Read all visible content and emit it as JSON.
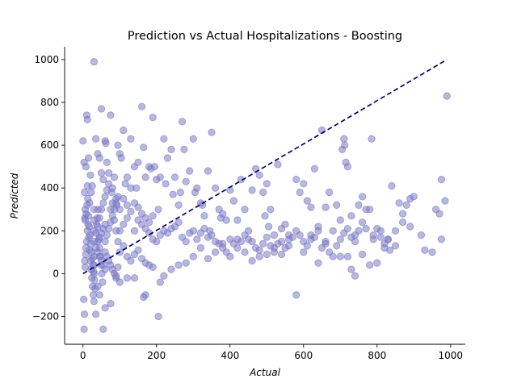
{
  "chart_data": {
    "type": "scatter",
    "title": "Prediction vs Actual Hospitalizations - Boosting",
    "xlabel": "Actual",
    "ylabel": "Predicted",
    "xlim": [
      -50,
      1040
    ],
    "ylim": [
      -330,
      1060
    ],
    "xticks": [
      0,
      200,
      400,
      600,
      800,
      1000
    ],
    "yticks": [
      -200,
      0,
      200,
      400,
      600,
      800,
      1000
    ],
    "grid": false,
    "point_color": "#7b7bc9",
    "reference_line": {
      "style": "dashed",
      "color": "#00007a",
      "from": [
        0,
        0
      ],
      "to": [
        990,
        1000
      ]
    },
    "points": [
      [
        0,
        620
      ],
      [
        3,
        520
      ],
      [
        4,
        380
      ],
      [
        5,
        260
      ],
      [
        6,
        300
      ],
      [
        8,
        120
      ],
      [
        2,
        -120
      ],
      [
        4,
        -190
      ],
      [
        3,
        -260
      ],
      [
        10,
        740
      ],
      [
        12,
        720
      ],
      [
        15,
        540
      ],
      [
        8,
        500
      ],
      [
        12,
        410
      ],
      [
        20,
        460
      ],
      [
        22,
        380
      ],
      [
        18,
        330
      ],
      [
        25,
        410
      ],
      [
        5,
        60
      ],
      [
        6,
        30
      ],
      [
        8,
        90
      ],
      [
        10,
        150
      ],
      [
        12,
        200
      ],
      [
        14,
        230
      ],
      [
        16,
        170
      ],
      [
        18,
        110
      ],
      [
        20,
        60
      ],
      [
        22,
        20
      ],
      [
        24,
        -20
      ],
      [
        26,
        -60
      ],
      [
        28,
        -100
      ],
      [
        30,
        -130
      ],
      [
        6,
        250
      ],
      [
        9,
        280
      ],
      [
        11,
        320
      ],
      [
        13,
        350
      ],
      [
        15,
        270
      ],
      [
        17,
        220
      ],
      [
        19,
        180
      ],
      [
        21,
        140
      ],
      [
        23,
        100
      ],
      [
        25,
        70
      ],
      [
        27,
        40
      ],
      [
        29,
        10
      ],
      [
        31,
        -30
      ],
      [
        33,
        -70
      ],
      [
        35,
        190
      ],
      [
        37,
        230
      ],
      [
        39,
        260
      ],
      [
        41,
        300
      ],
      [
        43,
        160
      ],
      [
        45,
        120
      ],
      [
        47,
        80
      ],
      [
        49,
        40
      ],
      [
        51,
        0
      ],
      [
        53,
        -40
      ],
      [
        30,
        990
      ],
      [
        35,
        630
      ],
      [
        40,
        560
      ],
      [
        45,
        540
      ],
      [
        50,
        470
      ],
      [
        55,
        440
      ],
      [
        60,
        620
      ],
      [
        62,
        610
      ],
      [
        50,
        770
      ],
      [
        65,
        520
      ],
      [
        70,
        470
      ],
      [
        75,
        740
      ],
      [
        78,
        380
      ],
      [
        80,
        400
      ],
      [
        85,
        450
      ],
      [
        90,
        350
      ],
      [
        92,
        320
      ],
      [
        95,
        600
      ],
      [
        100,
        560
      ],
      [
        104,
        540
      ],
      [
        110,
        670
      ],
      [
        115,
        420
      ],
      [
        120,
        450
      ],
      [
        130,
        630
      ],
      [
        140,
        500
      ],
      [
        145,
        400
      ],
      [
        150,
        520
      ],
      [
        160,
        780
      ],
      [
        165,
        590
      ],
      [
        170,
        450
      ],
      [
        180,
        500
      ],
      [
        185,
        490
      ],
      [
        190,
        730
      ],
      [
        195,
        500
      ],
      [
        200,
        440
      ],
      [
        205,
        300
      ],
      [
        210,
        450
      ],
      [
        220,
        630
      ],
      [
        225,
        420
      ],
      [
        230,
        540
      ],
      [
        240,
        580
      ],
      [
        245,
        370
      ],
      [
        250,
        450
      ],
      [
        260,
        320
      ],
      [
        265,
        380
      ],
      [
        270,
        710
      ],
      [
        275,
        580
      ],
      [
        280,
        430
      ],
      [
        290,
        480
      ],
      [
        300,
        630
      ],
      [
        305,
        380
      ],
      [
        310,
        400
      ],
      [
        320,
        330
      ],
      [
        325,
        320
      ],
      [
        330,
        270
      ],
      [
        340,
        480
      ],
      [
        345,
        200
      ],
      [
        350,
        660
      ],
      [
        360,
        400
      ],
      [
        370,
        300
      ],
      [
        375,
        260
      ],
      [
        380,
        280
      ],
      [
        390,
        250
      ],
      [
        400,
        390
      ],
      [
        410,
        340
      ],
      [
        420,
        250
      ],
      [
        430,
        440
      ],
      [
        440,
        300
      ],
      [
        450,
        200
      ],
      [
        460,
        390
      ],
      [
        470,
        490
      ],
      [
        480,
        460
      ],
      [
        490,
        380
      ],
      [
        495,
        270
      ],
      [
        500,
        420
      ],
      [
        505,
        220
      ],
      [
        510,
        300
      ],
      [
        520,
        180
      ],
      [
        530,
        510
      ],
      [
        540,
        210
      ],
      [
        550,
        230
      ],
      [
        560,
        160
      ],
      [
        580,
        440
      ],
      [
        590,
        380
      ],
      [
        600,
        420
      ],
      [
        610,
        340
      ],
      [
        620,
        310
      ],
      [
        630,
        490
      ],
      [
        640,
        220
      ],
      [
        650,
        670
      ],
      [
        660,
        310
      ],
      [
        670,
        380
      ],
      [
        690,
        320
      ],
      [
        700,
        250
      ],
      [
        705,
        580
      ],
      [
        710,
        630
      ],
      [
        712,
        600
      ],
      [
        715,
        520
      ],
      [
        720,
        500
      ],
      [
        730,
        270
      ],
      [
        740,
        180
      ],
      [
        750,
        320
      ],
      [
        760,
        360
      ],
      [
        770,
        300
      ],
      [
        780,
        300
      ],
      [
        785,
        630
      ],
      [
        790,
        160
      ],
      [
        800,
        210
      ],
      [
        810,
        170
      ],
      [
        820,
        140
      ],
      [
        830,
        160
      ],
      [
        840,
        410
      ],
      [
        850,
        200
      ],
      [
        860,
        330
      ],
      [
        870,
        280
      ],
      [
        880,
        320
      ],
      [
        890,
        350
      ],
      [
        900,
        360
      ],
      [
        930,
        110
      ],
      [
        950,
        100
      ],
      [
        960,
        300
      ],
      [
        970,
        280
      ],
      [
        975,
        160
      ],
      [
        985,
        340
      ],
      [
        990,
        830
      ],
      [
        975,
        440
      ],
      [
        580,
        -100
      ],
      [
        740,
        -10
      ],
      [
        730,
        20
      ],
      [
        760,
        90
      ],
      [
        780,
        40
      ],
      [
        800,
        50
      ],
      [
        835,
        110
      ],
      [
        820,
        120
      ],
      [
        700,
        80
      ],
      [
        720,
        80
      ],
      [
        640,
        50
      ],
      [
        660,
        150
      ],
      [
        680,
        200
      ],
      [
        600,
        100
      ],
      [
        620,
        160
      ],
      [
        560,
        180
      ],
      [
        540,
        150
      ],
      [
        520,
        120
      ],
      [
        500,
        90
      ],
      [
        480,
        80
      ],
      [
        460,
        60
      ],
      [
        440,
        100
      ],
      [
        420,
        120
      ],
      [
        400,
        160
      ],
      [
        380,
        140
      ],
      [
        360,
        100
      ],
      [
        340,
        70
      ],
      [
        320,
        120
      ],
      [
        300,
        80
      ],
      [
        280,
        50
      ],
      [
        260,
        40
      ],
      [
        240,
        20
      ],
      [
        220,
        -10
      ],
      [
        210,
        -40
      ],
      [
        205,
        -200
      ],
      [
        170,
        -100
      ],
      [
        165,
        -110
      ],
      [
        140,
        -20
      ],
      [
        120,
        -20
      ],
      [
        100,
        -40
      ],
      [
        90,
        -20
      ],
      [
        75,
        -140
      ],
      [
        60,
        -160
      ],
      [
        55,
        -260
      ],
      [
        35,
        -190
      ],
      [
        40,
        -60
      ],
      [
        45,
        -100
      ],
      [
        200,
        150
      ],
      [
        210,
        180
      ],
      [
        220,
        200
      ],
      [
        230,
        190
      ],
      [
        240,
        210
      ],
      [
        250,
        220
      ],
      [
        260,
        240
      ],
      [
        270,
        170
      ],
      [
        280,
        150
      ],
      [
        290,
        190
      ],
      [
        300,
        200
      ],
      [
        310,
        160
      ],
      [
        320,
        190
      ],
      [
        330,
        210
      ],
      [
        340,
        170
      ],
      [
        350,
        180
      ],
      [
        360,
        150
      ],
      [
        370,
        140
      ],
      [
        380,
        120
      ],
      [
        390,
        100
      ],
      [
        400,
        80
      ],
      [
        410,
        140
      ],
      [
        420,
        160
      ],
      [
        430,
        150
      ],
      [
        440,
        180
      ],
      [
        450,
        160
      ],
      [
        460,
        150
      ],
      [
        470,
        120
      ],
      [
        480,
        110
      ],
      [
        490,
        140
      ],
      [
        500,
        170
      ],
      [
        510,
        130
      ],
      [
        520,
        100
      ],
      [
        530,
        140
      ],
      [
        540,
        90
      ],
      [
        550,
        120
      ],
      [
        560,
        130
      ],
      [
        570,
        170
      ],
      [
        580,
        200
      ],
      [
        590,
        180
      ],
      [
        600,
        150
      ],
      [
        610,
        130
      ],
      [
        620,
        180
      ],
      [
        630,
        170
      ],
      [
        640,
        200
      ],
      [
        650,
        120
      ],
      [
        660,
        140
      ],
      [
        670,
        100
      ],
      [
        680,
        80
      ],
      [
        690,
        130
      ],
      [
        700,
        160
      ],
      [
        710,
        190
      ],
      [
        720,
        210
      ],
      [
        730,
        170
      ],
      [
        740,
        150
      ],
      [
        750,
        200
      ],
      [
        760,
        240
      ],
      [
        770,
        210
      ],
      [
        790,
        180
      ],
      [
        810,
        200
      ],
      [
        830,
        160
      ],
      [
        850,
        130
      ],
      [
        870,
        240
      ],
      [
        890,
        220
      ],
      [
        920,
        180
      ],
      [
        100,
        100
      ],
      [
        110,
        130
      ],
      [
        120,
        80
      ],
      [
        130,
        60
      ],
      [
        140,
        90
      ],
      [
        150,
        110
      ],
      [
        160,
        70
      ],
      [
        170,
        50
      ],
      [
        180,
        40
      ],
      [
        190,
        30
      ],
      [
        100,
        200
      ],
      [
        110,
        230
      ],
      [
        120,
        260
      ],
      [
        130,
        290
      ],
      [
        140,
        200
      ],
      [
        150,
        250
      ],
      [
        160,
        230
      ],
      [
        170,
        210
      ],
      [
        180,
        190
      ],
      [
        190,
        160
      ],
      [
        100,
        300
      ],
      [
        110,
        350
      ],
      [
        120,
        320
      ],
      [
        130,
        400
      ],
      [
        140,
        330
      ],
      [
        150,
        310
      ],
      [
        160,
        280
      ],
      [
        170,
        260
      ],
      [
        180,
        240
      ],
      [
        190,
        270
      ],
      [
        60,
        150
      ],
      [
        65,
        180
      ],
      [
        70,
        210
      ],
      [
        75,
        240
      ],
      [
        80,
        270
      ],
      [
        85,
        300
      ],
      [
        90,
        330
      ],
      [
        95,
        360
      ],
      [
        60,
        100
      ],
      [
        65,
        80
      ],
      [
        70,
        60
      ],
      [
        75,
        40
      ],
      [
        80,
        20
      ],
      [
        85,
        0
      ],
      [
        90,
        -10
      ],
      [
        95,
        30
      ],
      [
        40,
        150
      ],
      [
        45,
        170
      ],
      [
        50,
        190
      ],
      [
        55,
        210
      ],
      [
        60,
        230
      ],
      [
        40,
        100
      ],
      [
        45,
        80
      ],
      [
        50,
        60
      ],
      [
        55,
        40
      ],
      [
        60,
        20
      ],
      [
        30,
        150
      ],
      [
        30,
        200
      ],
      [
        30,
        250
      ],
      [
        30,
        300
      ],
      [
        30,
        80
      ],
      [
        30,
        40
      ],
      [
        30,
        0
      ],
      [
        35,
        120
      ],
      [
        40,
        220
      ],
      [
        45,
        260
      ],
      [
        50,
        300
      ],
      [
        55,
        330
      ],
      [
        60,
        360
      ],
      [
        65,
        390
      ],
      [
        70,
        420
      ],
      [
        75,
        300
      ],
      [
        80,
        330
      ],
      [
        85,
        250
      ],
      [
        90,
        200
      ],
      [
        95,
        150
      ]
    ]
  }
}
